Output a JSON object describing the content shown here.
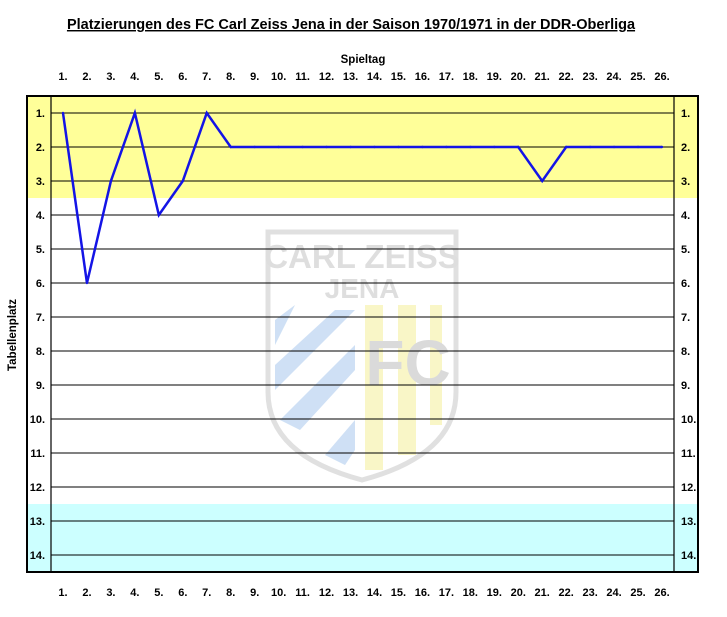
{
  "chart_data": {
    "type": "line",
    "title": "Platzierungen des FC Carl Zeiss Jena in der Saison 1970/1971 in der DDR-Oberliga",
    "xlabel": "Spieltag",
    "ylabel": "Tabellenplatz",
    "x_tick_labels": [
      "1.",
      "2.",
      "3.",
      "4.",
      "5.",
      "6.",
      "7.",
      "8.",
      "9.",
      "10.",
      "11.",
      "12.",
      "13.",
      "14.",
      "15.",
      "16.",
      "17.",
      "18.",
      "19.",
      "20.",
      "21.",
      "22.",
      "23.",
      "24.",
      "25.",
      "26."
    ],
    "y_tick_labels": [
      "1.",
      "2.",
      "3.",
      "4.",
      "5.",
      "6.",
      "7.",
      "8.",
      "9.",
      "10.",
      "11.",
      "12.",
      "13.",
      "14."
    ],
    "x": [
      1,
      2,
      3,
      4,
      5,
      6,
      7,
      8,
      9,
      10,
      11,
      12,
      13,
      14,
      15,
      16,
      17,
      18,
      19,
      20,
      21,
      22,
      23,
      24,
      25,
      26
    ],
    "values": [
      1,
      6,
      3,
      1,
      4,
      3,
      1,
      2,
      2,
      2,
      2,
      2,
      2,
      2,
      2,
      2,
      2,
      2,
      2,
      2,
      3,
      2,
      2,
      2,
      2,
      2
    ],
    "xlim": [
      1,
      26
    ],
    "ylim": [
      14,
      1
    ],
    "y_inverted": true,
    "grid": "horizontal",
    "bands": [
      {
        "name": "top-band",
        "from": 1,
        "to": 3,
        "color": "#ffff99"
      },
      {
        "name": "relegation-band",
        "from": 13,
        "to": 14,
        "color": "#ccffff"
      }
    ],
    "line_color": "#1414e6",
    "watermark": {
      "line1": "CARL ZEISS",
      "line2": "JENA",
      "letters": "FC"
    }
  }
}
